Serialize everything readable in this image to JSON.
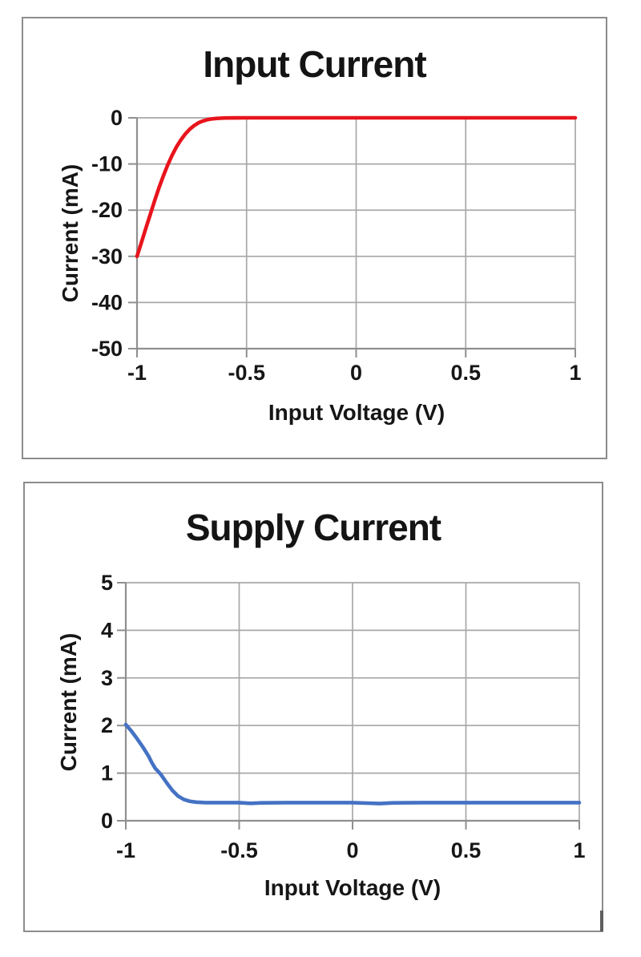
{
  "colors": {
    "grid": "#a8a8a8",
    "axis": "#8f8f8f",
    "panel_border": "#8c8c8c",
    "text": "#161616",
    "input_current_line": "#e8141c",
    "supply_current_line": "#4472c4"
  },
  "chart_data": [
    {
      "type": "line",
      "title": "Input Current",
      "xlabel": "Input Voltage (V)",
      "ylabel": "Current (mA)",
      "xlim": [
        -1,
        1
      ],
      "ylim": [
        -50,
        0
      ],
      "grid": true,
      "legend": "none",
      "line_color": "#e8141c",
      "x_ticks": [
        -1,
        -0.5,
        0,
        0.5,
        1
      ],
      "x_tick_labels": [
        "-1",
        "-0.5",
        "0",
        "0.5",
        "1"
      ],
      "y_ticks": [
        0,
        -10,
        -20,
        -30,
        -40,
        -50
      ],
      "y_tick_labels": [
        "0",
        "-10",
        "-20",
        "-30",
        "-40",
        "-50"
      ],
      "series": [
        {
          "name": "Input Current",
          "x": [
            -1.0,
            -0.98,
            -0.96,
            -0.94,
            -0.92,
            -0.9,
            -0.88,
            -0.86,
            -0.84,
            -0.82,
            -0.8,
            -0.78,
            -0.76,
            -0.74,
            -0.72,
            -0.7,
            -0.68,
            -0.66,
            -0.64,
            -0.62,
            -0.6,
            -0.55,
            -0.5,
            -0.4,
            -0.3,
            -0.2,
            -0.1,
            0.0,
            0.25,
            0.5,
            0.75,
            1.0
          ],
          "y": [
            -30.0,
            -27.0,
            -24.0,
            -21.0,
            -18.0,
            -15.2,
            -12.6,
            -10.2,
            -8.1,
            -6.3,
            -4.8,
            -3.5,
            -2.5,
            -1.7,
            -1.1,
            -0.7,
            -0.42,
            -0.25,
            -0.14,
            -0.08,
            -0.04,
            -0.01,
            0.0,
            0.0,
            0.0,
            0.0,
            0.0,
            0.0,
            0.0,
            0.0,
            0.0,
            0.0
          ]
        }
      ]
    },
    {
      "type": "line",
      "title": "Supply Current",
      "xlabel": "Input Voltage (V)",
      "ylabel": "Current (mA)",
      "xlim": [
        -1,
        1
      ],
      "ylim": [
        0,
        5
      ],
      "grid": true,
      "legend": "none",
      "line_color": "#4472c4",
      "x_ticks": [
        -1,
        -0.5,
        0,
        0.5,
        1
      ],
      "x_tick_labels": [
        "-1",
        "-0.5",
        "0",
        "0.5",
        "1"
      ],
      "y_ticks": [
        5,
        4,
        3,
        2,
        1,
        0
      ],
      "y_tick_labels": [
        "5",
        "4",
        "3",
        "2",
        "1",
        "0"
      ],
      "series": [
        {
          "name": "Supply Current",
          "x": [
            -1.0,
            -0.975,
            -0.95,
            -0.925,
            -0.9,
            -0.885,
            -0.87,
            -0.86,
            -0.845,
            -0.82,
            -0.795,
            -0.77,
            -0.745,
            -0.72,
            -0.69,
            -0.65,
            -0.6,
            -0.55,
            -0.5,
            -0.45,
            -0.4,
            -0.3,
            -0.2,
            -0.1,
            0.0,
            0.06,
            0.12,
            0.18,
            0.3,
            0.5,
            0.7,
            1.0
          ],
          "y": [
            2.02,
            1.88,
            1.72,
            1.55,
            1.36,
            1.22,
            1.1,
            1.05,
            0.97,
            0.8,
            0.64,
            0.52,
            0.45,
            0.41,
            0.39,
            0.38,
            0.38,
            0.38,
            0.38,
            0.365,
            0.375,
            0.38,
            0.38,
            0.38,
            0.38,
            0.37,
            0.36,
            0.375,
            0.38,
            0.38,
            0.38,
            0.38
          ]
        }
      ]
    }
  ]
}
